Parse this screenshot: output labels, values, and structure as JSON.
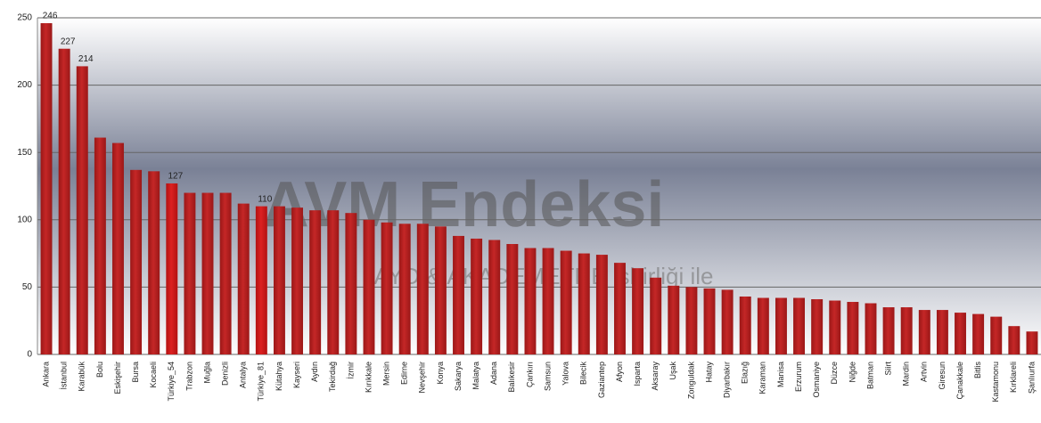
{
  "chart_data": {
    "type": "bar",
    "categories": [
      "Ankara",
      "İstanbul",
      "Karabük",
      "Bolu",
      "Eskişehir",
      "Bursa",
      "Kocaeli",
      "Türkiye_54",
      "Trabzon",
      "Muğla",
      "Denizli",
      "Antalya",
      "Türkiye_81",
      "Kütahya",
      "Kayseri",
      "Aydın",
      "Tekirdağ",
      "İzmir",
      "Kırıkkale",
      "Mersin",
      "Edirne",
      "Nevşehir",
      "Konya",
      "Sakarya",
      "Malatya",
      "Adana",
      "Balıkesir",
      "Çankırı",
      "Samsun",
      "Yalova",
      "Bilecik",
      "Gaziantep",
      "Afyon",
      "Isparta",
      "Aksaray",
      "Uşak",
      "Zonguldak",
      "Hatay",
      "Diyarbakır",
      "Elazığ",
      "Karaman",
      "Manisa",
      "Erzurum",
      "Osmaniye",
      "Düzce",
      "Niğde",
      "Batman",
      "Siirt",
      "Mardin",
      "Artvin",
      "Giresun",
      "Çanakkale",
      "Bitlis",
      "Kastamonu",
      "Kırklareli",
      "Şanlıurfa"
    ],
    "values": [
      246,
      227,
      214,
      161,
      157,
      137,
      136,
      127,
      120,
      120,
      120,
      112,
      110,
      110,
      109,
      107,
      107,
      105,
      100,
      98,
      97,
      97,
      95,
      88,
      86,
      85,
      82,
      79,
      79,
      77,
      75,
      74,
      68,
      64,
      57,
      51,
      50,
      49,
      48,
      43,
      42,
      42,
      42,
      41,
      40,
      39,
      38,
      35,
      35,
      33,
      33,
      31,
      30,
      28,
      21,
      17
    ],
    "color": "#b51f1f",
    "highlight_color": "#e01515",
    "highlight": [
      "Türkiye_54",
      "Türkiye_81"
    ],
    "labeled_bars": [
      "Ankara",
      "İstanbul",
      "Karabük",
      "Türkiye_54",
      "Türkiye_81"
    ],
    "ylim": [
      0,
      250
    ],
    "yticks": [
      0,
      50,
      100,
      150,
      200,
      250
    ],
    "grid": true,
    "annotations": [
      "AVM Endeksi",
      "AYD & AKADEMETRE işbirliği ile"
    ]
  }
}
